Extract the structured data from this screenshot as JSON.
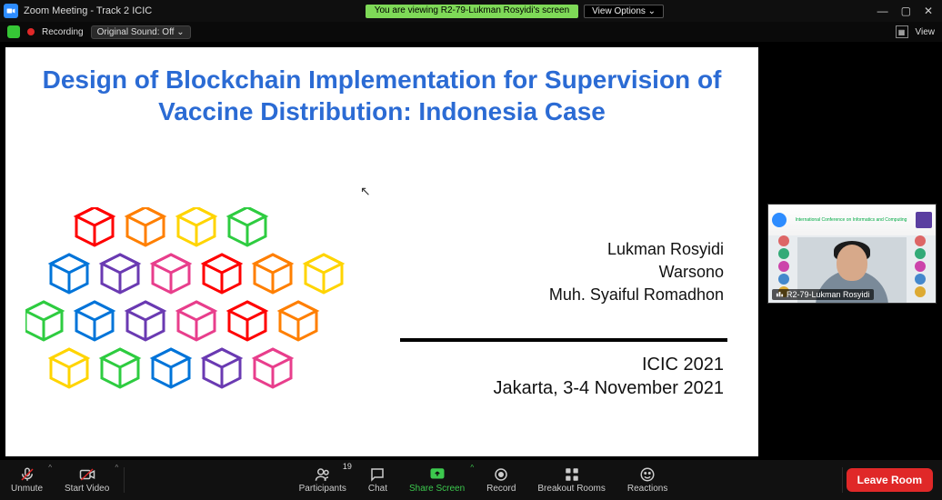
{
  "window": {
    "title": "Zoom Meeting - Track 2 ICIC",
    "notice": "You are viewing R2-79-Lukman Rosyidi's screen",
    "view_options_label": "View Options ⌄"
  },
  "subbar": {
    "recording_label": "Recording",
    "sound_label": "Original Sound: Off  ⌄",
    "view_label": "View"
  },
  "slide": {
    "title": "Design of Blockchain Implementation for Supervision of Vaccine Distribution: Indonesia Case",
    "authors": [
      "Lukman Rosyidi",
      "Warsono",
      "Muh. Syaiful Romadhon"
    ],
    "conference": "ICIC 2021",
    "location_date": "Jakarta, 3-4 November 2021",
    "title_color": "#2b6bd4",
    "cube_colors": [
      "#ff0000",
      "#ff7f00",
      "#ffd400",
      "#2ecc40",
      "#0074d9",
      "#6a3ab2",
      "#e83e8c"
    ]
  },
  "speaker": {
    "banner_text": "International Conference on Informatics and Computing",
    "name": "R2-79-Lukman Rosyidi"
  },
  "toolbar": {
    "unmute": "Unmute",
    "start_video": "Start Video",
    "participants": "Participants",
    "participants_count": "19",
    "chat": "Chat",
    "share": "Share Screen",
    "record": "Record",
    "breakout": "Breakout Rooms",
    "reactions": "Reactions",
    "leave": "Leave Room"
  }
}
